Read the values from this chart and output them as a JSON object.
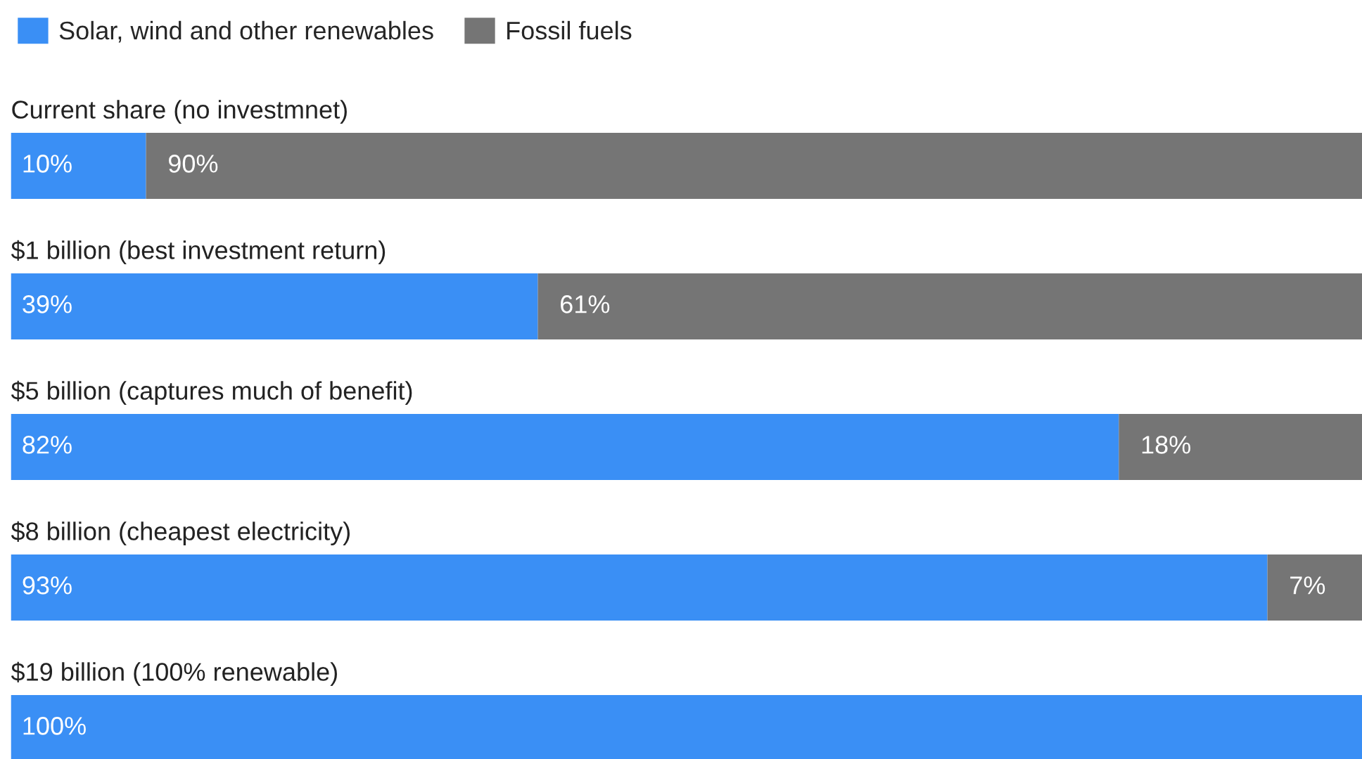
{
  "chart_data": {
    "type": "bar",
    "orientation": "horizontal",
    "stacked": true,
    "legend": "top left",
    "categories": [
      "Current share (no investmnet)",
      "$1 billion (best investment return)",
      "$5 billion (captures much of benefit)",
      "$8 billion (cheapest electricity)",
      "$19 billion (100% renewable)"
    ],
    "series": [
      {
        "name": "Solar, wind and other renewables",
        "color": "#3a8ff5",
        "values": [
          10,
          39,
          82,
          93,
          100
        ],
        "value_labels": [
          "10%",
          "39%",
          "82%",
          "93%",
          "100%"
        ]
      },
      {
        "name": "Fossil fuels",
        "color": "#757575",
        "values": [
          90,
          61,
          18,
          7,
          0
        ],
        "value_labels": [
          "90%",
          "61%",
          "18%",
          "7%",
          null
        ]
      }
    ]
  }
}
